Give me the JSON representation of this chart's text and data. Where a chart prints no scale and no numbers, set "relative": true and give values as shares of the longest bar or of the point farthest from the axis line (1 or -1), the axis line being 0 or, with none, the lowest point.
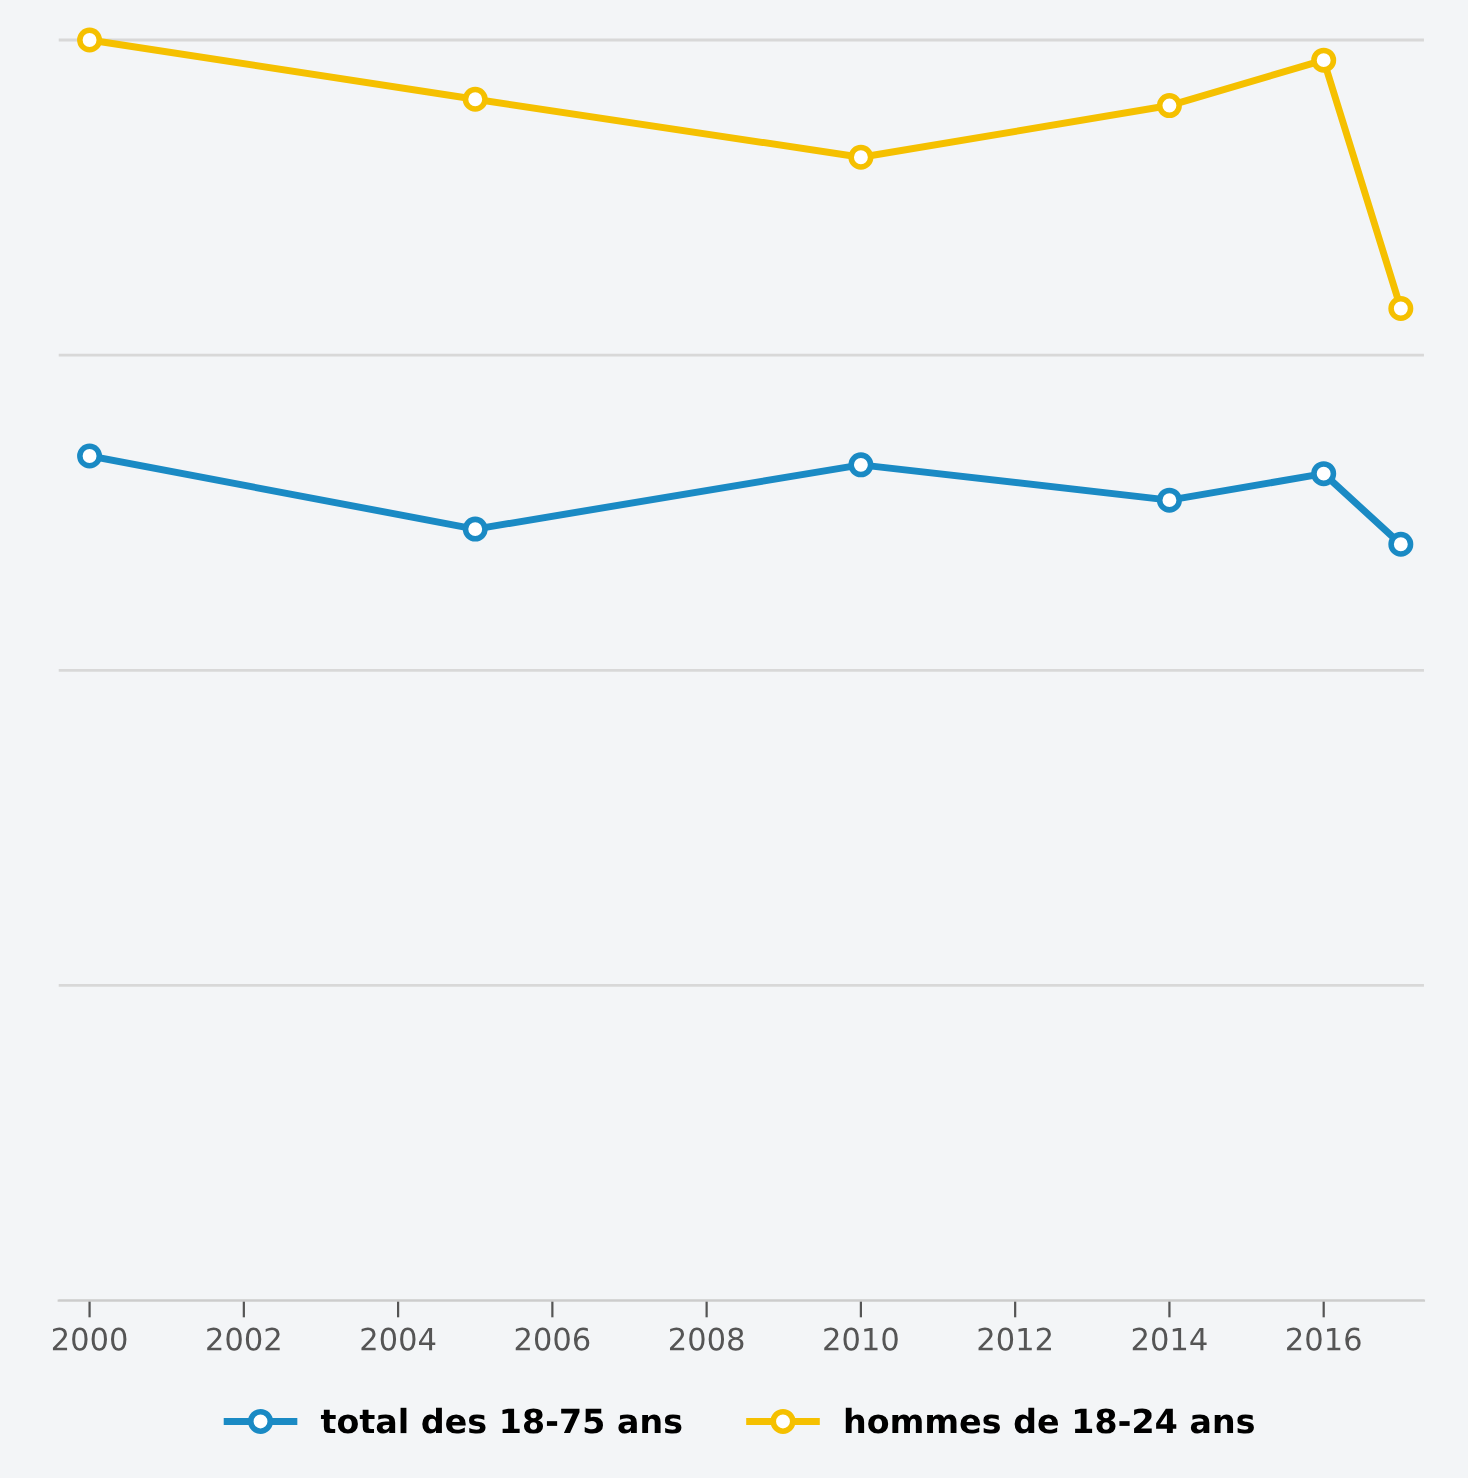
{
  "chart_data": {
    "type": "line",
    "relative": true,
    "x": [
      2000,
      2005,
      2010,
      2014,
      2016,
      2017
    ],
    "xlim": [
      1999.6,
      2017.3
    ],
    "xticks": [
      2000,
      2002,
      2004,
      2006,
      2008,
      2010,
      2012,
      2014,
      2016
    ],
    "series": [
      {
        "name": "total des 18-75 ans",
        "color": "#1a8ac4",
        "values": [
          0.67,
          0.612,
          0.663,
          0.635,
          0.656,
          0.6
        ]
      },
      {
        "name": "hommes de 18-24 ans",
        "color": "#f5c000",
        "values": [
          1.0,
          0.953,
          0.907,
          0.948,
          0.984,
          0.787
        ]
      }
    ],
    "marker": "circle",
    "line_style": "solid",
    "grid": "y",
    "legend": "bottom"
  }
}
